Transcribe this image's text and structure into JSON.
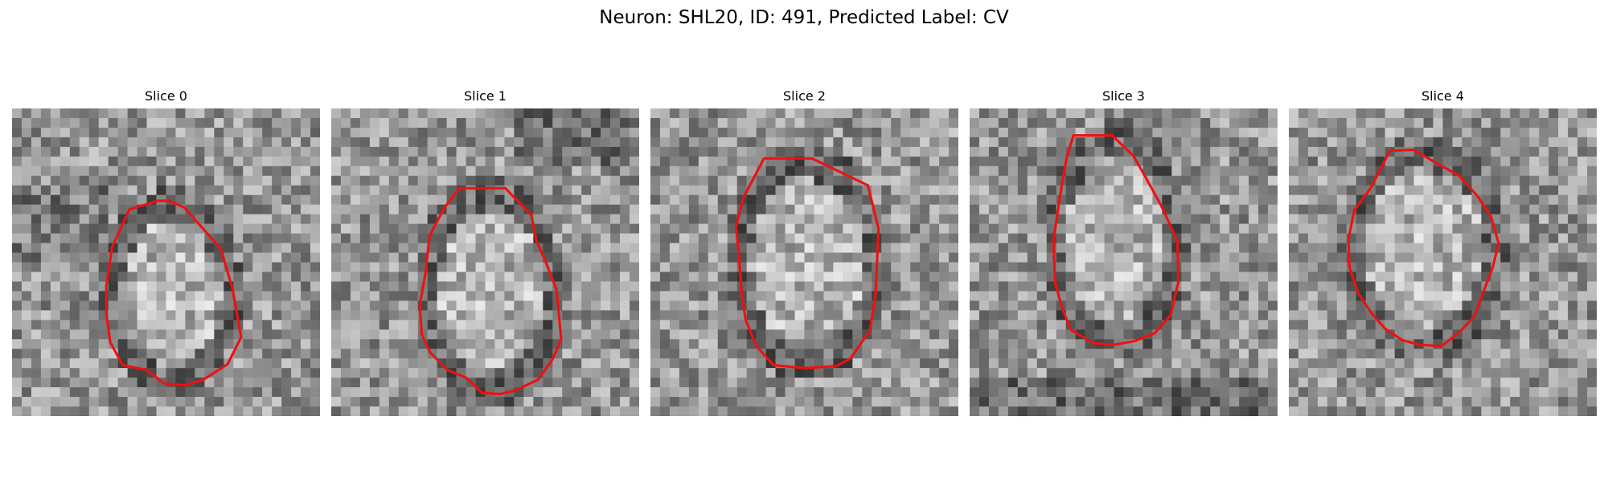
{
  "figure": {
    "title": "Neuron: SHL20, ID: 491, Predicted Label: CV"
  },
  "slices": [
    {
      "label": "Slice 0"
    },
    {
      "label": "Slice 1"
    },
    {
      "label": "Slice 2"
    },
    {
      "label": "Slice 3"
    },
    {
      "label": "Slice 4"
    }
  ],
  "colors": {
    "contour": "#ee1111",
    "background": "#ffffff"
  }
}
